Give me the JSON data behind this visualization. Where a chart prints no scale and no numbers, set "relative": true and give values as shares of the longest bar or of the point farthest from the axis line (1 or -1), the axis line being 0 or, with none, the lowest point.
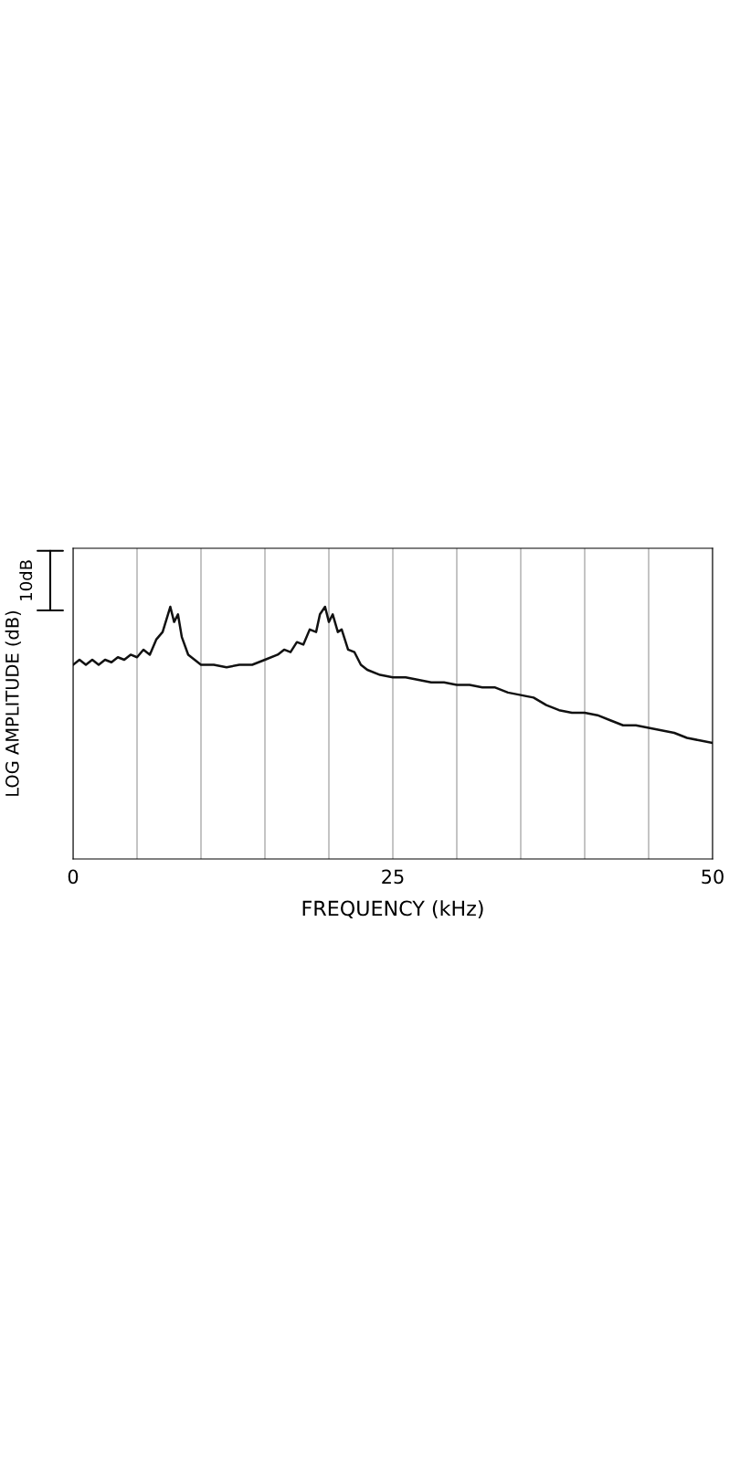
{
  "chart_data": {
    "type": "line",
    "relative": true,
    "xlabel": "FREQUENCY (kHz)",
    "ylabel": "LOG AMPLITUDE (dB)",
    "annotations": [
      "10dB"
    ],
    "xlim": [
      0,
      50
    ],
    "xticks": [
      0,
      {
        "value": 5,
        "label": null
      },
      {
        "value": 10,
        "label": null
      },
      {
        "value": 15,
        "label": null
      },
      {
        "value": 20,
        "label": null
      },
      25,
      {
        "value": 30,
        "label": null
      },
      {
        "value": 35,
        "label": null
      },
      {
        "value": 40,
        "label": null
      },
      {
        "value": 45,
        "label": null
      },
      50
    ],
    "grid": "x",
    "line_style": "solid",
    "series": [
      {
        "color": "#111111",
        "x": [
          0,
          0.5,
          1,
          1.5,
          2,
          2.5,
          3,
          3.5,
          4,
          4.5,
          5,
          5.5,
          6,
          6.5,
          7,
          7.3,
          7.6,
          7.9,
          8.2,
          8.5,
          9,
          9.5,
          10,
          11,
          12,
          13,
          14,
          15,
          16,
          16.5,
          17,
          17.5,
          18,
          18.5,
          19,
          19.3,
          19.7,
          20,
          20.3,
          20.7,
          21,
          21.5,
          22,
          22.5,
          23,
          24,
          25,
          26,
          27,
          28,
          29,
          30,
          31,
          32,
          33,
          34,
          35,
          36,
          37,
          38,
          39,
          40,
          41,
          42,
          43,
          44,
          45,
          46,
          47,
          48,
          49,
          50
        ],
        "values": [
          0.77,
          0.79,
          0.77,
          0.79,
          0.77,
          0.79,
          0.78,
          0.8,
          0.79,
          0.81,
          0.8,
          0.83,
          0.81,
          0.87,
          0.9,
          0.95,
          1.0,
          0.94,
          0.97,
          0.88,
          0.81,
          0.79,
          0.77,
          0.77,
          0.76,
          0.77,
          0.77,
          0.79,
          0.81,
          0.83,
          0.82,
          0.86,
          0.85,
          0.91,
          0.9,
          0.97,
          1.0,
          0.94,
          0.97,
          0.9,
          0.91,
          0.83,
          0.82,
          0.77,
          0.75,
          0.73,
          0.72,
          0.72,
          0.71,
          0.7,
          0.7,
          0.69,
          0.69,
          0.68,
          0.68,
          0.66,
          0.65,
          0.64,
          0.61,
          0.59,
          0.58,
          0.58,
          0.57,
          0.55,
          0.53,
          0.53,
          0.52,
          0.51,
          0.5,
          0.48,
          0.47,
          0.46
        ]
      }
    ]
  }
}
